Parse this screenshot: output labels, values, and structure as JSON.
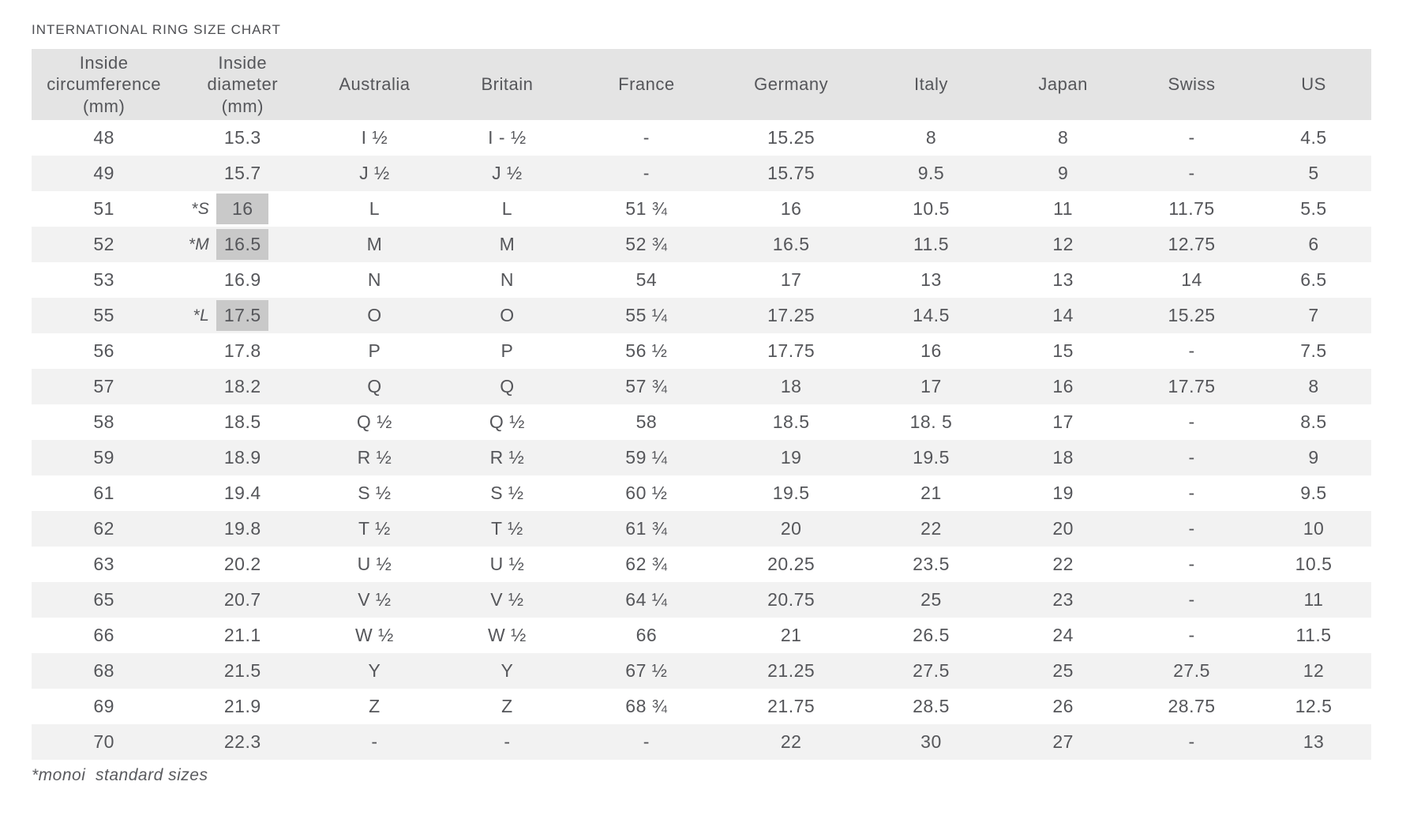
{
  "title": "INTERNATIONAL RING SIZE CHART",
  "footnote": "*monoi  standard sizes",
  "colors": {
    "header_bg": "#e4e4e4",
    "row_alt_bg": "#f2f2f2",
    "highlight_bg": "#c9c9c9",
    "text": "#55565a",
    "background": "#ffffff"
  },
  "chart_data": {
    "type": "table",
    "title": "INTERNATIONAL RING SIZE CHART",
    "footnote": "*monoi  standard sizes",
    "columns": [
      "Inside\ncircumference\n(mm)",
      "Inside\ndiameter\n(mm)",
      "Australia",
      "Britain",
      "France",
      "Germany",
      "Italy",
      "Japan",
      "Swiss",
      "US"
    ],
    "rows": [
      {
        "cells": [
          "48",
          "15.3",
          "I ½",
          "I - ½",
          "-",
          "15.25",
          "8",
          "8",
          "-",
          "4.5"
        ],
        "marker": null,
        "highlight": false
      },
      {
        "cells": [
          "49",
          "15.7",
          "J ½",
          "J ½",
          "-",
          "15.75",
          "9.5",
          "9",
          "-",
          "5"
        ],
        "marker": null,
        "highlight": false
      },
      {
        "cells": [
          "51",
          "16",
          "L",
          "L",
          "51 ¾",
          "16",
          "10.5",
          "11",
          "11.75",
          "5.5"
        ],
        "marker": "*S",
        "highlight": true
      },
      {
        "cells": [
          "52",
          "16.5",
          "M",
          "M",
          "52 ¾",
          "16.5",
          "11.5",
          "12",
          "12.75",
          "6"
        ],
        "marker": "*M",
        "highlight": true
      },
      {
        "cells": [
          "53",
          "16.9",
          "N",
          "N",
          "54",
          "17",
          "13",
          "13",
          "14",
          "6.5"
        ],
        "marker": null,
        "highlight": false
      },
      {
        "cells": [
          "55",
          "17.5",
          "O",
          "O",
          "55 ¼",
          "17.25",
          "14.5",
          "14",
          "15.25",
          "7"
        ],
        "marker": "*L",
        "highlight": true
      },
      {
        "cells": [
          "56",
          "17.8",
          "P",
          "P",
          "56 ½",
          "17.75",
          "16",
          "15",
          "-",
          "7.5"
        ],
        "marker": null,
        "highlight": false
      },
      {
        "cells": [
          "57",
          "18.2",
          "Q",
          "Q",
          "57 ¾",
          "18",
          "17",
          "16",
          "17.75",
          "8"
        ],
        "marker": null,
        "highlight": false
      },
      {
        "cells": [
          "58",
          "18.5",
          "Q ½",
          "Q ½",
          "58",
          "18.5",
          "18. 5",
          "17",
          "-",
          "8.5"
        ],
        "marker": null,
        "highlight": false
      },
      {
        "cells": [
          "59",
          "18.9",
          "R ½",
          "R ½",
          "59 ¼",
          "19",
          "19.5",
          "18",
          "-",
          "9"
        ],
        "marker": null,
        "highlight": false
      },
      {
        "cells": [
          "61",
          "19.4",
          "S ½",
          "S ½",
          "60 ½",
          "19.5",
          "21",
          "19",
          "-",
          "9.5"
        ],
        "marker": null,
        "highlight": false
      },
      {
        "cells": [
          "62",
          "19.8",
          "T ½",
          "T ½",
          "61 ¾",
          "20",
          "22",
          "20",
          "-",
          "10"
        ],
        "marker": null,
        "highlight": false
      },
      {
        "cells": [
          "63",
          "20.2",
          "U ½",
          "U ½",
          "62 ¾",
          "20.25",
          "23.5",
          "22",
          "-",
          "10.5"
        ],
        "marker": null,
        "highlight": false
      },
      {
        "cells": [
          "65",
          "20.7",
          "V ½",
          "V ½",
          "64 ¼",
          "20.75",
          "25",
          "23",
          "-",
          "11"
        ],
        "marker": null,
        "highlight": false
      },
      {
        "cells": [
          "66",
          "21.1",
          "W ½",
          "W ½",
          "66",
          "21",
          "26.5",
          "24",
          "-",
          "11.5"
        ],
        "marker": null,
        "highlight": false
      },
      {
        "cells": [
          "68",
          "21.5",
          "Y",
          "Y",
          "67 ½",
          "21.25",
          "27.5",
          "25",
          "27.5",
          "12"
        ],
        "marker": null,
        "highlight": false
      },
      {
        "cells": [
          "69",
          "21.9",
          "Z",
          "Z",
          "68 ¾",
          "21.75",
          "28.5",
          "26",
          "28.75",
          "12.5"
        ],
        "marker": null,
        "highlight": false
      },
      {
        "cells": [
          "70",
          "22.3",
          "-",
          "-",
          "-",
          "22",
          "30",
          "27",
          "-",
          "13"
        ],
        "marker": null,
        "highlight": false
      }
    ]
  }
}
